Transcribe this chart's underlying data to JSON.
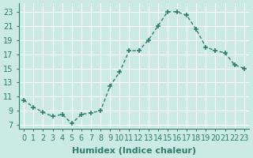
{
  "x": [
    0,
    1,
    2,
    3,
    4,
    5,
    6,
    7,
    8,
    9,
    10,
    11,
    12,
    13,
    14,
    15,
    16,
    17,
    18,
    19,
    20,
    21,
    22,
    23
  ],
  "y": [
    10.5,
    9.5,
    8.8,
    8.2,
    8.5,
    7.2,
    8.5,
    8.7,
    9.0,
    12.5,
    14.5,
    17.5,
    17.5,
    19.0,
    21.0,
    23.0,
    23.0,
    22.5,
    20.5,
    18.0,
    17.5,
    17.2,
    15.5,
    15.0
  ],
  "line_color": "#2e7d6e",
  "bg_color": "#cceae4",
  "grid_color": "#ffffff",
  "xlabel": "Humidex (Indice chaleur)",
  "yticks": [
    7,
    9,
    11,
    13,
    15,
    17,
    19,
    21,
    23
  ],
  "xticks": [
    0,
    1,
    2,
    3,
    4,
    5,
    6,
    7,
    8,
    9,
    10,
    11,
    12,
    13,
    14,
    15,
    16,
    17,
    18,
    19,
    20,
    21,
    22,
    23
  ],
  "xlim": [
    -0.5,
    23.5
  ],
  "ylim": [
    6.5,
    24.2
  ],
  "font_color": "#2e7d6e",
  "font_size": 7.0,
  "xlabel_fontsize": 8.0
}
